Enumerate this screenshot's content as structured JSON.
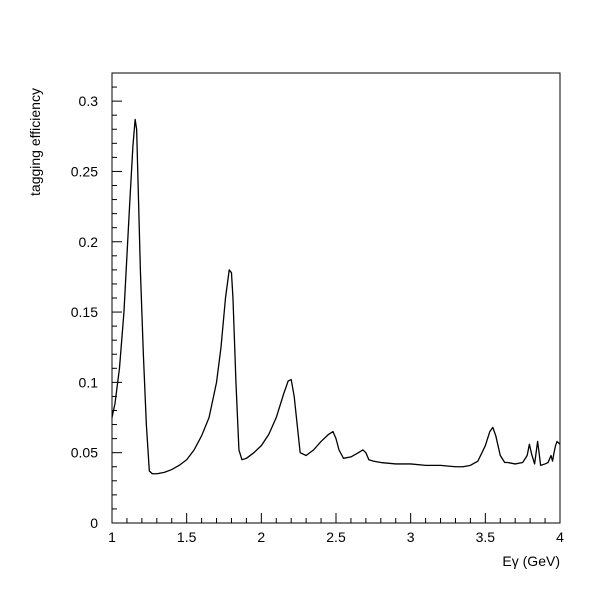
{
  "chart_data": {
    "type": "line",
    "title": "",
    "xlabel": "Eγ (GeV)",
    "ylabel": "tagging efficiency",
    "xlim": [
      1,
      4
    ],
    "ylim": [
      0,
      0.32
    ],
    "x_ticks": [
      1,
      1.5,
      2,
      2.5,
      3,
      3.5,
      4
    ],
    "x_tick_labels": [
      "1",
      "1.5",
      "2",
      "2.5",
      "3",
      "3.5",
      "4"
    ],
    "y_ticks": [
      0,
      0.05,
      0.1,
      0.15,
      0.2,
      0.25,
      0.3
    ],
    "y_tick_labels": [
      "0",
      "0.05",
      "0.1",
      "0.15",
      "0.2",
      "0.25",
      "0.3"
    ],
    "grid": false,
    "legend": "none",
    "series": [
      {
        "x": [
          1.0,
          1.02,
          1.05,
          1.08,
          1.1,
          1.12,
          1.14,
          1.155,
          1.165,
          1.175,
          1.19,
          1.21,
          1.23,
          1.25,
          1.27,
          1.3,
          1.35,
          1.4,
          1.45,
          1.5,
          1.55,
          1.6,
          1.65,
          1.7,
          1.73,
          1.76,
          1.785,
          1.8,
          1.81,
          1.83,
          1.85,
          1.87,
          1.9,
          1.95,
          2.0,
          2.05,
          2.1,
          2.15,
          2.18,
          2.2,
          2.22,
          2.24,
          2.26,
          2.3,
          2.35,
          2.4,
          2.45,
          2.48,
          2.5,
          2.52,
          2.55,
          2.6,
          2.65,
          2.68,
          2.7,
          2.72,
          2.75,
          2.8,
          2.9,
          3.0,
          3.1,
          3.2,
          3.3,
          3.35,
          3.4,
          3.45,
          3.5,
          3.53,
          3.55,
          3.57,
          3.6,
          3.63,
          3.65,
          3.7,
          3.75,
          3.78,
          3.795,
          3.81,
          3.83,
          3.85,
          3.86,
          3.87,
          3.9,
          3.92,
          3.94,
          3.95,
          3.96,
          3.97,
          3.98,
          3.99,
          4.0
        ],
        "y": [
          0.075,
          0.085,
          0.11,
          0.15,
          0.19,
          0.23,
          0.268,
          0.287,
          0.28,
          0.24,
          0.18,
          0.12,
          0.07,
          0.037,
          0.035,
          0.035,
          0.036,
          0.038,
          0.041,
          0.045,
          0.052,
          0.062,
          0.075,
          0.1,
          0.125,
          0.16,
          0.18,
          0.178,
          0.16,
          0.1,
          0.052,
          0.045,
          0.046,
          0.05,
          0.055,
          0.063,
          0.075,
          0.092,
          0.101,
          0.102,
          0.09,
          0.07,
          0.05,
          0.048,
          0.052,
          0.058,
          0.063,
          0.065,
          0.06,
          0.052,
          0.046,
          0.047,
          0.05,
          0.052,
          0.05,
          0.045,
          0.044,
          0.043,
          0.042,
          0.042,
          0.041,
          0.041,
          0.04,
          0.04,
          0.041,
          0.044,
          0.055,
          0.065,
          0.068,
          0.062,
          0.048,
          0.043,
          0.043,
          0.042,
          0.043,
          0.048,
          0.056,
          0.049,
          0.042,
          0.058,
          0.05,
          0.041,
          0.042,
          0.043,
          0.048,
          0.044,
          0.05,
          0.055,
          0.058,
          0.057,
          0.056
        ]
      }
    ]
  }
}
